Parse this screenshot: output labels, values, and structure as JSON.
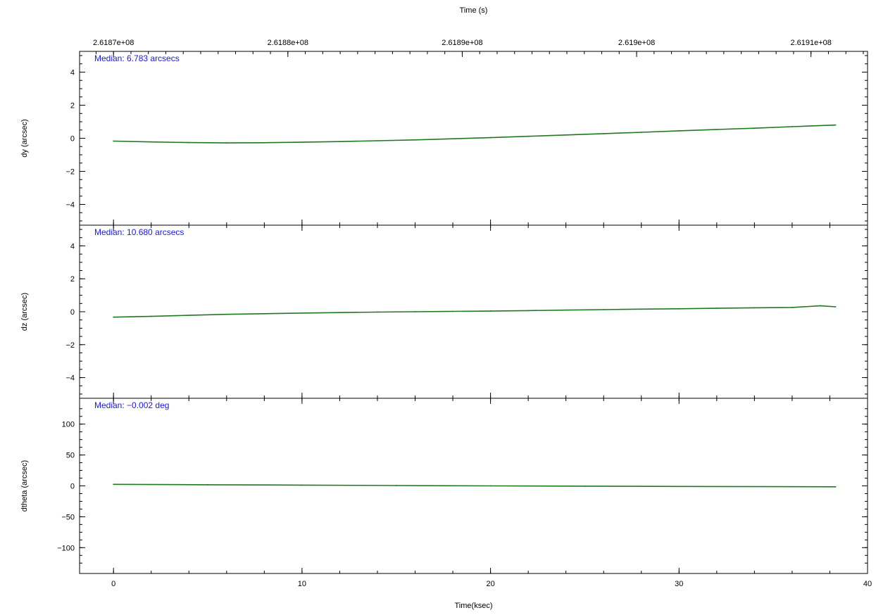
{
  "chart_data": {
    "type": "line",
    "title": "",
    "top_axis": {
      "label": "Time (s)",
      "tick_labels": [
        "2.6187e+08",
        "2.6188e+08",
        "2.6189e+08",
        "2.619e+08",
        "2.6191e+08"
      ],
      "tick_ksec": [
        0.0,
        9.25,
        18.5,
        27.75,
        37.0
      ]
    },
    "xlabel": "Time(ksec)",
    "xlim": [
      -1.8,
      40
    ],
    "x_ticks": [
      0,
      10,
      20,
      30,
      40
    ],
    "series_color": "#1f7a1f",
    "annotation_color": "#1a1adc",
    "panels": [
      {
        "ylabel": "dy (arcsec)",
        "ylim": [
          -5,
          5
        ],
        "y_ticks": [
          -4,
          -2,
          0,
          2,
          4
        ],
        "y_tick_labels": [
          "−4",
          "−2",
          "0",
          "2",
          "4"
        ],
        "annotation": "Median: 6.783 arcsecs",
        "x": [
          0,
          2,
          4,
          6,
          8,
          10,
          12,
          14,
          16,
          18,
          20,
          22,
          24,
          26,
          28,
          30,
          32,
          34,
          36,
          38.3
        ],
        "y": [
          -0.17,
          -0.22,
          -0.26,
          -0.28,
          -0.27,
          -0.24,
          -0.2,
          -0.15,
          -0.1,
          -0.03,
          0.04,
          0.12,
          0.2,
          0.28,
          0.36,
          0.45,
          0.53,
          0.61,
          0.7,
          0.8
        ]
      },
      {
        "ylabel": "dz (arcsec)",
        "ylim": [
          -5,
          5
        ],
        "y_ticks": [
          -4,
          -2,
          0,
          2,
          4
        ],
        "y_tick_labels": [
          "−4",
          "−2",
          "0",
          "2",
          "4"
        ],
        "annotation": "Median: 10.680 arcsecs",
        "x": [
          0,
          2,
          4,
          6,
          8,
          10,
          12,
          14,
          16,
          18,
          20,
          22,
          24,
          26,
          28,
          30,
          32,
          34,
          36,
          37.5,
          38.3
        ],
        "y": [
          -0.33,
          -0.28,
          -0.22,
          -0.16,
          -0.12,
          -0.08,
          -0.05,
          -0.02,
          0.0,
          0.02,
          0.04,
          0.07,
          0.1,
          0.13,
          0.16,
          0.18,
          0.21,
          0.24,
          0.26,
          0.36,
          0.3
        ]
      },
      {
        "ylabel": "dtheta (arcsec)",
        "ylim": [
          -135,
          135
        ],
        "y_ticks": [
          -100,
          -50,
          0,
          50,
          100
        ],
        "y_tick_labels": [
          "−100",
          "−50",
          "0",
          "50",
          "100"
        ],
        "annotation": "Median: −0.002 deg",
        "x": [
          0,
          5,
          10,
          15,
          20,
          25,
          30,
          35,
          38.3
        ],
        "y": [
          2.5,
          1.8,
          1.2,
          0.6,
          0.0,
          -0.5,
          -0.9,
          -1.3,
          -1.5
        ]
      }
    ]
  }
}
